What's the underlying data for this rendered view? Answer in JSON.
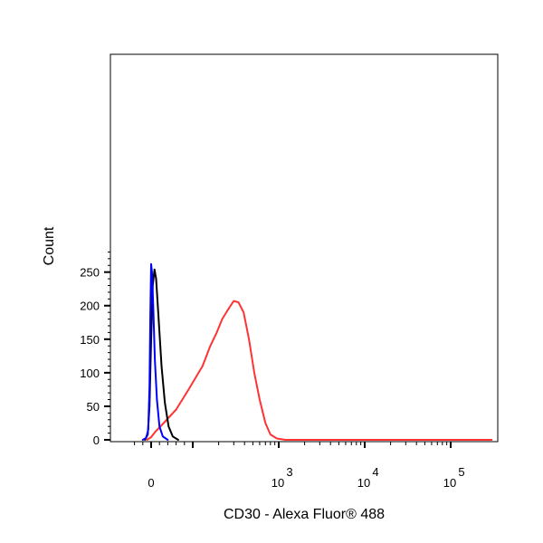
{
  "chart_data": {
    "type": "line",
    "xlabel": "CD30 - Alexa Fluor® 488",
    "ylabel": "Count",
    "x_scale": "biexponential",
    "x_ticks": [
      {
        "value": 0,
        "base": "0",
        "exp": ""
      },
      {
        "value": 1000,
        "base": "10",
        "exp": "3"
      },
      {
        "value": 10000,
        "base": "10",
        "exp": "4"
      },
      {
        "value": 100000,
        "base": "10",
        "exp": "5"
      }
    ],
    "ylim": [
      0,
      280
    ],
    "y_ticks": [
      0,
      50,
      100,
      150,
      200,
      250
    ],
    "grid": false,
    "legend": "none",
    "series": [
      {
        "color": "#0000ff",
        "points": [
          [
            -20,
            0
          ],
          [
            -12,
            3
          ],
          [
            -7,
            15
          ],
          [
            -4,
            80
          ],
          [
            -2,
            185
          ],
          [
            0,
            262
          ],
          [
            2,
            250
          ],
          [
            5,
            200
          ],
          [
            9,
            120
          ],
          [
            14,
            60
          ],
          [
            20,
            20
          ],
          [
            28,
            5
          ],
          [
            40,
            0
          ]
        ]
      },
      {
        "color": "#000000",
        "points": [
          [
            -15,
            0
          ],
          [
            -8,
            8
          ],
          [
            -4,
            50
          ],
          [
            0,
            150
          ],
          [
            4,
            230
          ],
          [
            8,
            254
          ],
          [
            12,
            240
          ],
          [
            18,
            180
          ],
          [
            25,
            110
          ],
          [
            33,
            55
          ],
          [
            42,
            20
          ],
          [
            52,
            5
          ],
          [
            65,
            0
          ]
        ]
      },
      {
        "color": "#ff3333",
        "points": [
          [
            -10,
            0
          ],
          [
            0,
            4
          ],
          [
            10,
            12
          ],
          [
            30,
            25
          ],
          [
            60,
            45
          ],
          [
            90,
            75
          ],
          [
            130,
            110
          ],
          [
            160,
            140
          ],
          [
            190,
            160
          ],
          [
            220,
            180
          ],
          [
            260,
            195
          ],
          [
            300,
            207
          ],
          [
            340,
            205
          ],
          [
            390,
            190
          ],
          [
            450,
            150
          ],
          [
            520,
            100
          ],
          [
            600,
            60
          ],
          [
            700,
            25
          ],
          [
            800,
            8
          ],
          [
            950,
            2
          ],
          [
            1200,
            0
          ],
          [
            100000,
            0
          ],
          [
            300000,
            0
          ]
        ]
      }
    ]
  }
}
